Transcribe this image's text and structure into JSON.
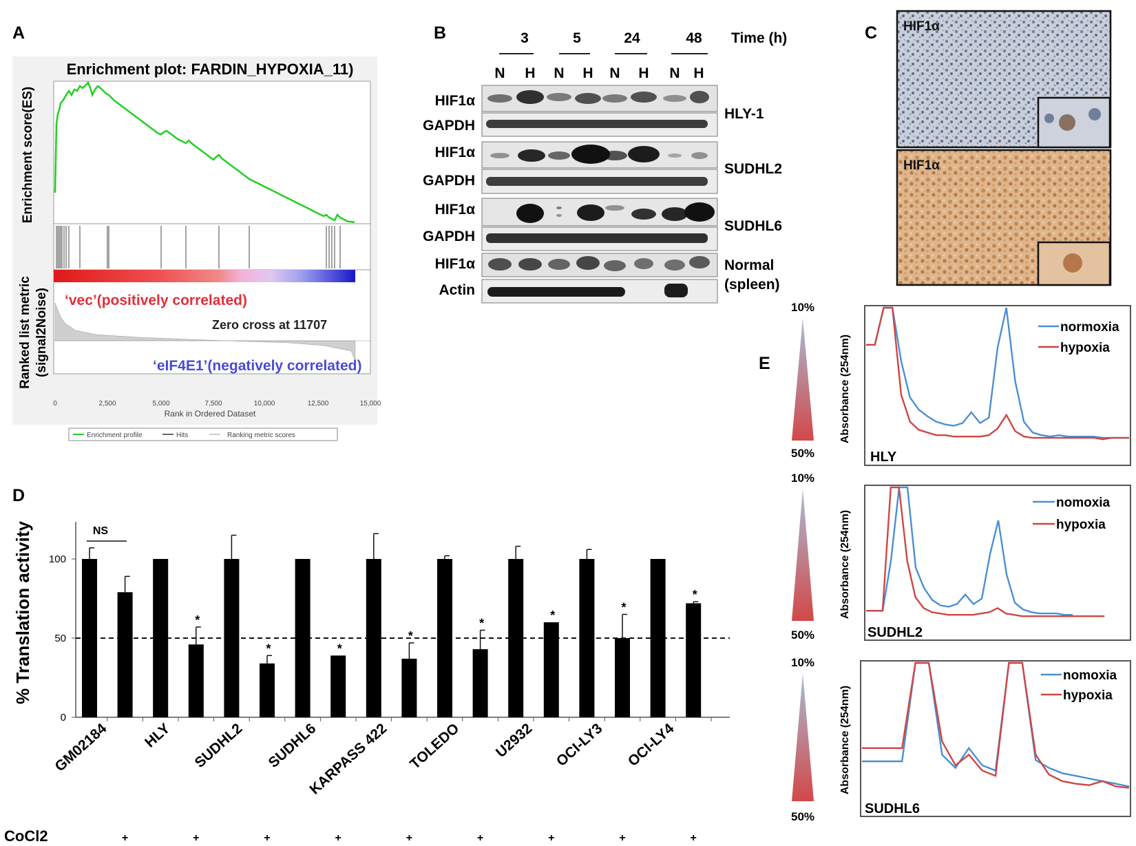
{
  "panel_labels": {
    "a": "A",
    "b": "B",
    "c": "C",
    "d": "D",
    "e": "E"
  },
  "colors": {
    "gsea_line": "#22d022",
    "pos": "#e0303a",
    "neg": "#3a3ad8",
    "normoxia": "#4b8fd2",
    "hypoxia": "#d04545",
    "bar": "#000000"
  },
  "panelA": {
    "title": "Enrichment plot: FARDIN_HYPOXIA_11)",
    "ylabel_top": "Enrichment score(ES)",
    "ylabel_bottom_1": "Ranked list metric",
    "ylabel_bottom_2": "(signal2Noise)",
    "pos_label": "‘vec’(positively correlated)",
    "zero_cross": "Zero cross at 11707",
    "neg_label": "‘eIF4E1’(negatively correlated)",
    "xlabel": "Rank in Ordered Dataset",
    "xticks": [
      "0",
      "2,500",
      "5,000",
      "7,500",
      "10,000",
      "12,500",
      "15,000"
    ],
    "legend": [
      "Enrichment profile",
      "Hits",
      "Ranking metric scores"
    ]
  },
  "panelB": {
    "time_label": "Time (h)",
    "times": [
      "3",
      "5",
      "24",
      "48"
    ],
    "lanes": [
      "N",
      "H",
      "N",
      "H",
      "N",
      "H",
      "N",
      "H"
    ],
    "rows": [
      "HIF1α",
      "GAPDH",
      "HIF1α",
      "GAPDH",
      "HIF1α",
      "GAPDH",
      "HIF1α",
      "Actin"
    ],
    "cell_lines": [
      "HLY-1",
      "SUDHL2",
      "SUDHL6",
      "Normal",
      "(spleen)"
    ]
  },
  "panelC": {
    "label_top": "HIF1α",
    "label_bottom": "HIF1α"
  },
  "chart_data": [
    {
      "type": "bar",
      "panel": "D",
      "ylabel": "% Translation activity",
      "yticks": [
        "0",
        "50",
        "100"
      ],
      "ylim": [
        0,
        125
      ],
      "reference_line": 50,
      "ns_label": "NS",
      "groups": [
        "GM02184",
        "HLY",
        "SUDHL2",
        "SUDHL6",
        "KARPASS 422",
        "TOLEDO",
        "U2932",
        "OCI-LY3",
        "OCI-LY4"
      ],
      "values": [
        100,
        79,
        100,
        46,
        100,
        34,
        100,
        39,
        100,
        37,
        100,
        43,
        100,
        60,
        100,
        50,
        100,
        72
      ],
      "errors": [
        7,
        10,
        0,
        11,
        15,
        5,
        0,
        0,
        16,
        10,
        2,
        12,
        8,
        0,
        6,
        15,
        0,
        1
      ],
      "cocl2": [
        "",
        "+",
        "",
        "+",
        "",
        "+",
        "",
        "+",
        "",
        "+",
        "",
        "+",
        "",
        "+",
        "",
        "+",
        "",
        "+"
      ],
      "significance": [
        "",
        "",
        "",
        "*",
        "",
        "*",
        "",
        "*",
        "",
        "*",
        "",
        "*",
        "",
        "*",
        "",
        "*",
        "",
        "*"
      ],
      "cocl2_label": "CoCl2"
    },
    {
      "type": "line",
      "panel": "E",
      "name": "HLY",
      "ylabel": "Absorbance (254nm)",
      "gradient_top": "10%",
      "gradient_bottom": "50%",
      "series": [
        {
          "name": "normoxia",
          "values": [
            0.72,
            0.72,
            1.3,
            1.3,
            0.6,
            0.33,
            0.24,
            0.19,
            0.15,
            0.13,
            0.12,
            0.14,
            0.22,
            0.14,
            0.18,
            0.7,
            1.3,
            0.45,
            0.15,
            0.07,
            0.05,
            0.04,
            0.05,
            0.04,
            0.04,
            0.04,
            0.04,
            0.03,
            0.03,
            0.03,
            0.03
          ]
        },
        {
          "name": "hypoxia",
          "values": [
            0.72,
            0.72,
            1.3,
            1.3,
            0.35,
            0.15,
            0.09,
            0.07,
            0.05,
            0.05,
            0.04,
            0.04,
            0.04,
            0.04,
            0.05,
            0.1,
            0.2,
            0.08,
            0.04,
            0.03,
            0.03,
            0.03,
            0.03,
            0.03,
            0.03,
            0.03,
            0.03,
            0.02,
            0.03,
            0.03,
            0.03
          ]
        }
      ]
    },
    {
      "type": "line",
      "panel": "E",
      "name": "SUDHL2",
      "ylabel": "Absorbance (254nm)",
      "gradient_top": "10%",
      "gradient_bottom": "50%",
      "series": [
        {
          "name": "nomoxia",
          "values": [
            0.08,
            0.08,
            0.08,
            0.45,
            1.2,
            1.2,
            0.4,
            0.25,
            0.16,
            0.12,
            0.11,
            0.13,
            0.2,
            0.13,
            0.17,
            0.5,
            0.75,
            0.35,
            0.14,
            0.09,
            0.07,
            0.06,
            0.06,
            0.06,
            0.05,
            0.05
          ]
        },
        {
          "name": "hypoxia",
          "values": [
            0.08,
            0.08,
            0.08,
            1.2,
            1.2,
            0.45,
            0.18,
            0.1,
            0.07,
            0.06,
            0.05,
            0.05,
            0.05,
            0.05,
            0.06,
            0.07,
            0.1,
            0.06,
            0.05,
            0.04,
            0.04,
            0.04,
            0.04,
            0.04,
            0.04,
            0.04,
            0.04,
            0.04,
            0.04,
            0.04
          ]
        }
      ]
    },
    {
      "type": "line",
      "panel": "E",
      "name": "SUDHL6",
      "ylabel": "Absorbance (254nm)",
      "gradient_top": "10%",
      "gradient_bottom": "50%",
      "series": [
        {
          "name": "nomoxia",
          "values": [
            0.25,
            0.25,
            0.25,
            0.25,
            1.4,
            1.4,
            0.3,
            0.2,
            0.35,
            0.22,
            0.18,
            1.4,
            1.4,
            0.26,
            0.2,
            0.16,
            0.14,
            0.12,
            0.1,
            0.08,
            0.06
          ]
        },
        {
          "name": "hypoxia",
          "values": [
            0.35,
            0.35,
            0.35,
            0.35,
            1.4,
            1.4,
            0.4,
            0.22,
            0.3,
            0.18,
            0.14,
            1.4,
            1.4,
            0.3,
            0.15,
            0.1,
            0.08,
            0.07,
            0.1,
            0.06,
            0.05
          ]
        }
      ]
    }
  ]
}
